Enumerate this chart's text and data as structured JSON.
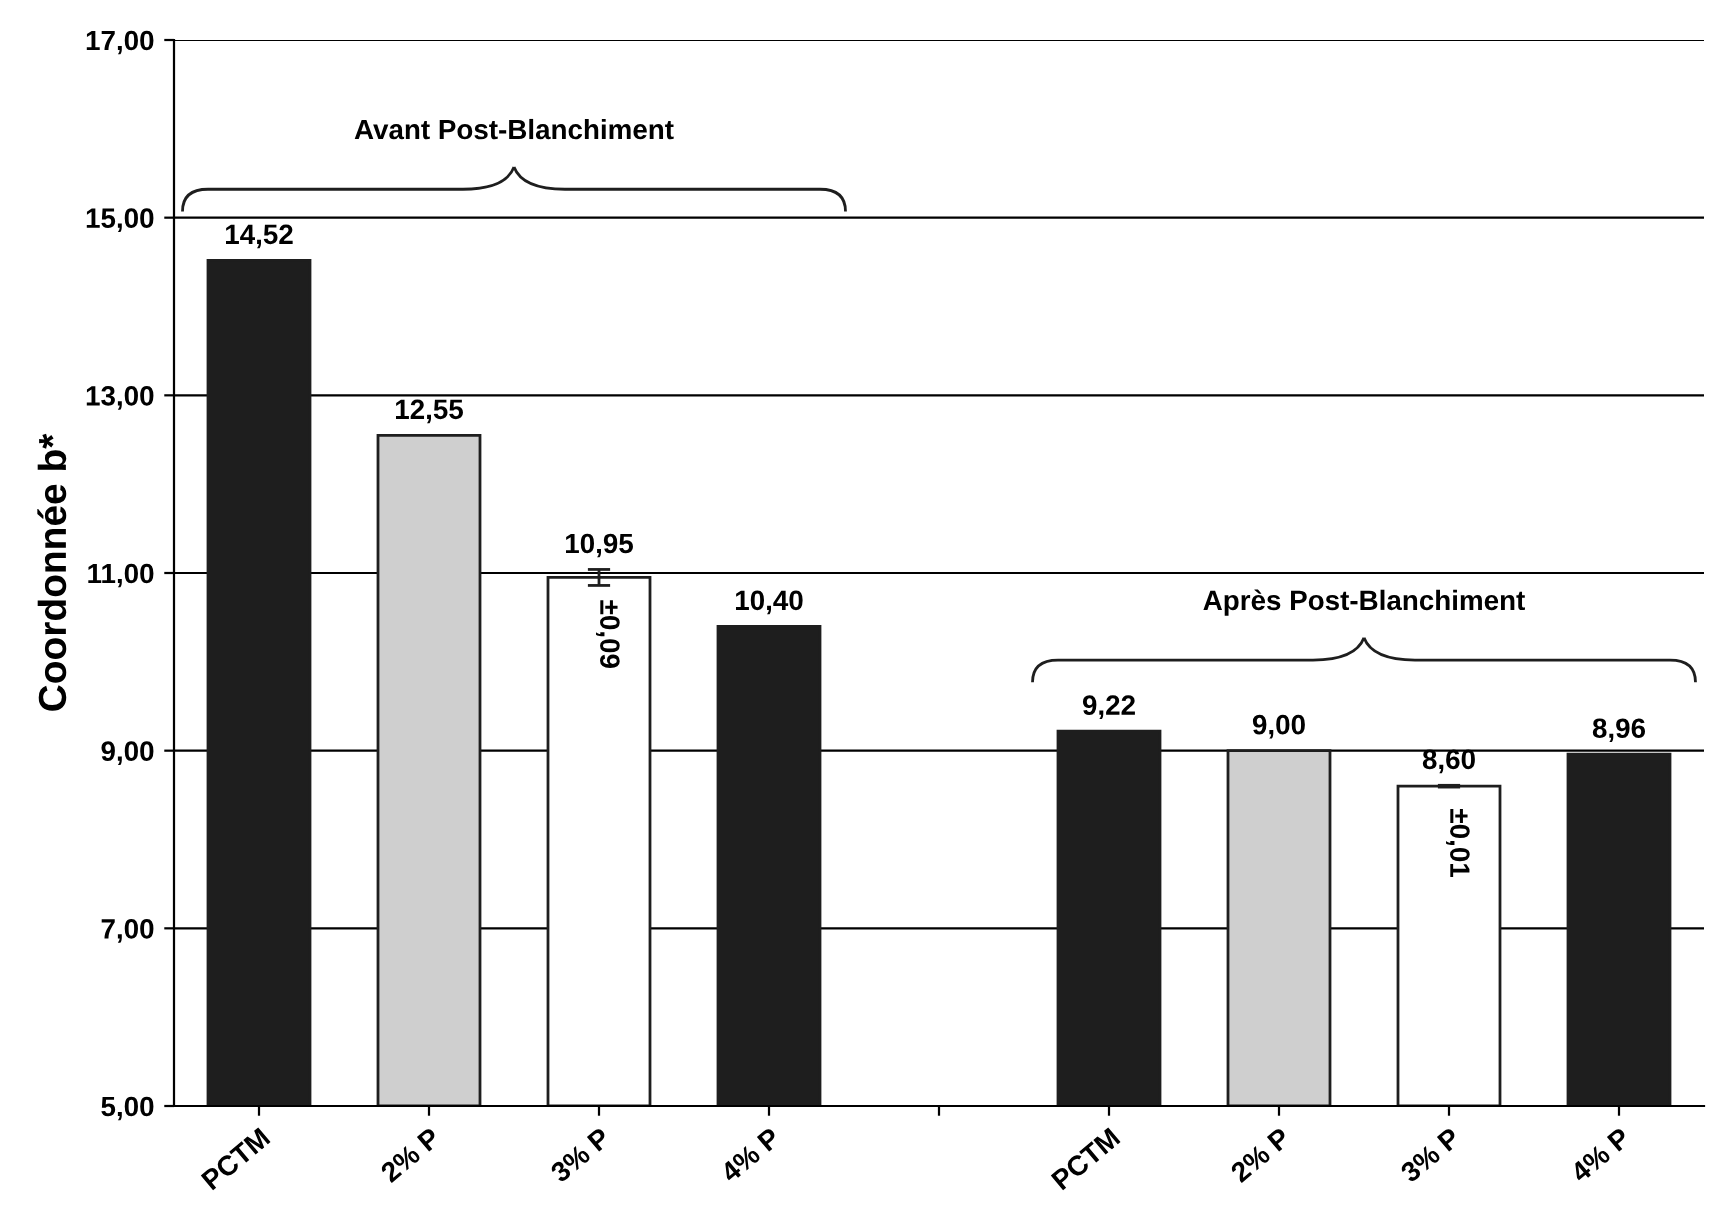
{
  "chart_data": {
    "type": "bar",
    "ylabel": "Coordonnée b*",
    "categories": [
      "PCTM",
      "2% P",
      "3% P",
      "4% P",
      null,
      "PCTM",
      "2% P",
      "3% P",
      "4% P"
    ],
    "values": [
      14.52,
      12.55,
      10.95,
      10.4,
      null,
      9.22,
      9.0,
      8.6,
      8.96
    ],
    "colors": [
      "#1e1e1e",
      "#cfcfcf",
      "#ffffff",
      "#1e1e1e",
      null,
      "#1e1e1e",
      "#cfcfcf",
      "#ffffff",
      "#1e1e1e"
    ],
    "value_labels": [
      "14,52",
      "12,55",
      "10,95",
      "10,40",
      null,
      "9,22",
      "9,00",
      "8,60",
      "8,96"
    ],
    "errors": [
      null,
      null,
      0.09,
      null,
      null,
      null,
      null,
      0.01,
      null
    ],
    "annotations": [
      "Avant Post-Blanchiment",
      "Après Post-Blanchiment",
      "±0,09",
      "±0,01"
    ],
    "ylim": [
      5,
      17
    ],
    "yticks": [
      {
        "value": 5,
        "label": "5,00"
      },
      {
        "value": 7,
        "label": "7,00"
      },
      {
        "value": 9,
        "label": "9,00"
      },
      {
        "value": 11,
        "label": "11,00"
      },
      {
        "value": 13,
        "label": "13,00"
      },
      {
        "value": 15,
        "label": "15,00"
      },
      {
        "value": 17,
        "label": "17,00"
      }
    ],
    "grid": "y"
  }
}
